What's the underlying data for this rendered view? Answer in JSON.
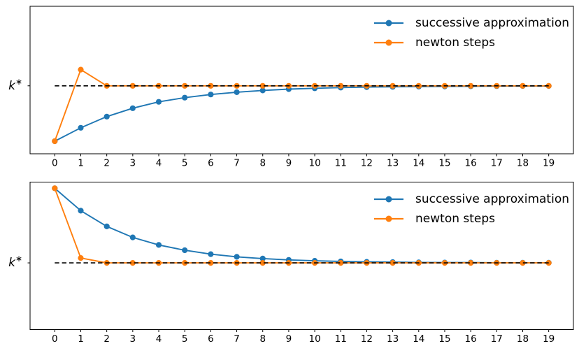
{
  "figure": {
    "background": "#ffffff",
    "frame_color": "#000000"
  },
  "chart_data": [
    {
      "name": "top",
      "type": "line",
      "title": "",
      "xlabel": "",
      "ylabel": "",
      "x": [
        0,
        1,
        2,
        3,
        4,
        5,
        6,
        7,
        8,
        9,
        10,
        11,
        12,
        13,
        14,
        15,
        16,
        17,
        18,
        19
      ],
      "x_tick_labels": [
        "0",
        "1",
        "2",
        "3",
        "4",
        "5",
        "6",
        "7",
        "8",
        "9",
        "10",
        "11",
        "12",
        "13",
        "14",
        "15",
        "16",
        "17",
        "18",
        "19"
      ],
      "xlim": [
        -0.95,
        19.95
      ],
      "ylim": [
        0.53,
        1.55
      ],
      "grid": false,
      "y_tick_label": "k*",
      "reference_line": {
        "value": 1.0,
        "color": "#000000",
        "style": "dashed",
        "x_start": 0,
        "x_end": 19
      },
      "legend": {
        "position": "upper right",
        "frame": false
      },
      "series": [
        {
          "name": "successive approximation",
          "color": "#1f77b4",
          "marker": "o",
          "values": [
            0.617,
            0.71,
            0.787,
            0.845,
            0.889,
            0.918,
            0.94,
            0.956,
            0.968,
            0.977,
            0.983,
            0.988,
            0.991,
            0.993,
            0.995,
            0.996,
            0.997,
            0.998,
            0.999,
            0.999
          ]
        },
        {
          "name": "newton steps",
          "color": "#ff7f0e",
          "marker": "o",
          "values": [
            0.617,
            1.112,
            1.0,
            1.0,
            1.0,
            1.0,
            1.0,
            1.0,
            1.0,
            1.0,
            1.0,
            1.0,
            1.0,
            1.0,
            1.0,
            1.0,
            1.0,
            1.0,
            1.0,
            1.0
          ]
        }
      ]
    },
    {
      "name": "bottom",
      "type": "line",
      "title": "",
      "xlabel": "",
      "ylabel": "",
      "x": [
        0,
        1,
        2,
        3,
        4,
        5,
        6,
        7,
        8,
        9,
        10,
        11,
        12,
        13,
        14,
        15,
        16,
        17,
        18,
        19
      ],
      "x_tick_labels": [
        "0",
        "1",
        "2",
        "3",
        "4",
        "5",
        "6",
        "7",
        "8",
        "9",
        "10",
        "11",
        "12",
        "13",
        "14",
        "15",
        "16",
        "17",
        "18",
        "19"
      ],
      "xlim": [
        -0.95,
        19.95
      ],
      "ylim": [
        0.55,
        1.545
      ],
      "grid": false,
      "y_tick_label": "k*",
      "reference_line": {
        "value": 1.0,
        "color": "#000000",
        "style": "dashed",
        "x_start": 0,
        "x_end": 19
      },
      "legend": {
        "position": "upper right",
        "frame": false
      },
      "series": [
        {
          "name": "successive approximation",
          "color": "#1f77b4",
          "marker": "o",
          "values": [
            1.503,
            1.352,
            1.246,
            1.172,
            1.121,
            1.085,
            1.059,
            1.041,
            1.029,
            1.02,
            1.014,
            1.01,
            1.007,
            1.005,
            1.003,
            1.002,
            1.002,
            1.001,
            1.001,
            1.001
          ]
        },
        {
          "name": "newton steps",
          "color": "#ff7f0e",
          "marker": "o",
          "values": [
            1.503,
            1.033,
            1.0,
            1.0,
            1.0,
            1.0,
            1.0,
            1.0,
            1.0,
            1.0,
            1.0,
            1.0,
            1.0,
            1.0,
            1.0,
            1.0,
            1.0,
            1.0,
            1.0,
            1.0
          ]
        }
      ]
    }
  ]
}
